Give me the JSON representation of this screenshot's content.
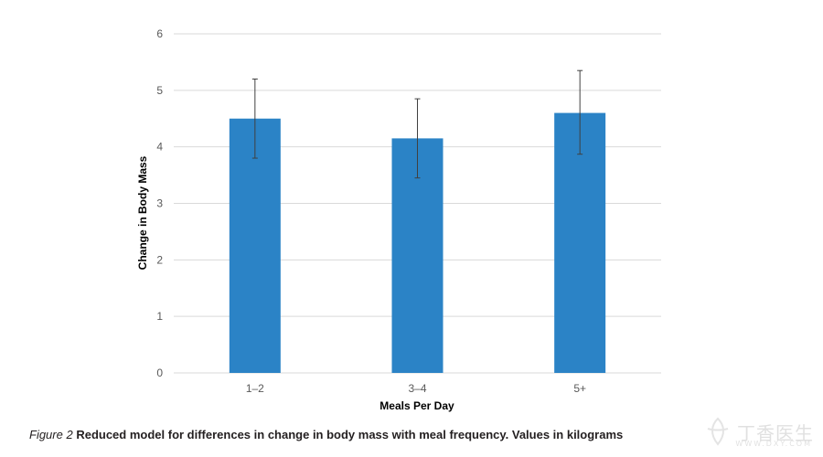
{
  "chart_data": {
    "type": "bar",
    "categories": [
      "1–2",
      "3–4",
      "5+"
    ],
    "values": [
      4.5,
      4.15,
      4.6
    ],
    "error_bars": [
      {
        "low": 3.8,
        "high": 5.2
      },
      {
        "low": 3.45,
        "high": 4.85
      },
      {
        "low": 3.87,
        "high": 5.35
      }
    ],
    "title": "",
    "xlabel": "Meals Per Day",
    "ylabel": "Change in Body Mass",
    "ylim": [
      0,
      6
    ],
    "yticks": [
      "0",
      "1",
      "2",
      "3",
      "4",
      "5",
      "6"
    ],
    "grid": true,
    "bar_color": "#2b83c6",
    "grid_color": "#d9d9d9",
    "error_bar_color": "#404040"
  },
  "caption": {
    "label": "Figure 2",
    "text": "Reduced model for differences in change in body mass with meal frequency. Values in kilograms"
  },
  "watermark": {
    "text": "丁香医生",
    "sub": "WWW.DXY.COM"
  }
}
